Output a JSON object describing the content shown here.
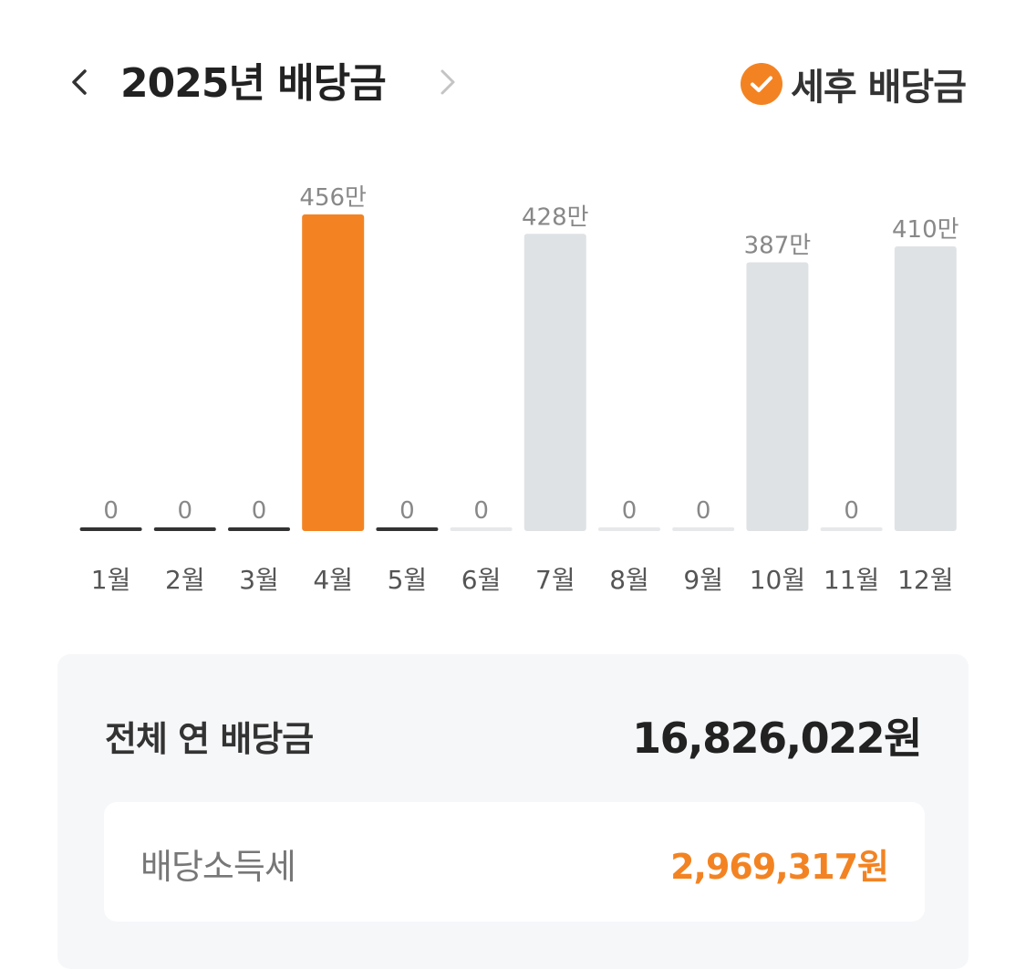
{
  "header": {
    "year_title": "2025년 배당금",
    "prev_icon": "chevron-left-icon",
    "next_icon": "chevron-right-icon",
    "aftertax_label": "세후 배당금",
    "aftertax_checked": true,
    "check_icon": "check-circle-icon"
  },
  "colors": {
    "accent": "#f38322",
    "bar_future": "#dfe2e5",
    "bar_past_zero": "#333333",
    "bar_future_zero": "#e6e8ea",
    "value_label": "#888888",
    "month_label": "#555555"
  },
  "chart_data": {
    "type": "bar",
    "categories": [
      "1월",
      "2월",
      "3월",
      "4월",
      "5월",
      "6월",
      "7월",
      "8월",
      "9월",
      "10월",
      "11월",
      "12월"
    ],
    "values": [
      0,
      0,
      0,
      456,
      0,
      0,
      428,
      0,
      0,
      387,
      0,
      410
    ],
    "value_labels": [
      "0",
      "0",
      "0",
      "456만",
      "0",
      "0",
      "428만",
      "0",
      "0",
      "387만",
      "0",
      "410만"
    ],
    "value_unit": "만",
    "highlight_index": 3,
    "bar_states": [
      "past",
      "past",
      "past",
      "current",
      "past",
      "future",
      "future",
      "future",
      "future",
      "future",
      "future",
      "future"
    ],
    "title": "",
    "xlabel": "",
    "ylabel": "",
    "grid": false,
    "legend": "none"
  },
  "summary": {
    "total_label": "전체 연 배당금",
    "total_value": "16,826,022원",
    "tax_label": "배당소득세",
    "tax_value": "2,969,317원"
  }
}
